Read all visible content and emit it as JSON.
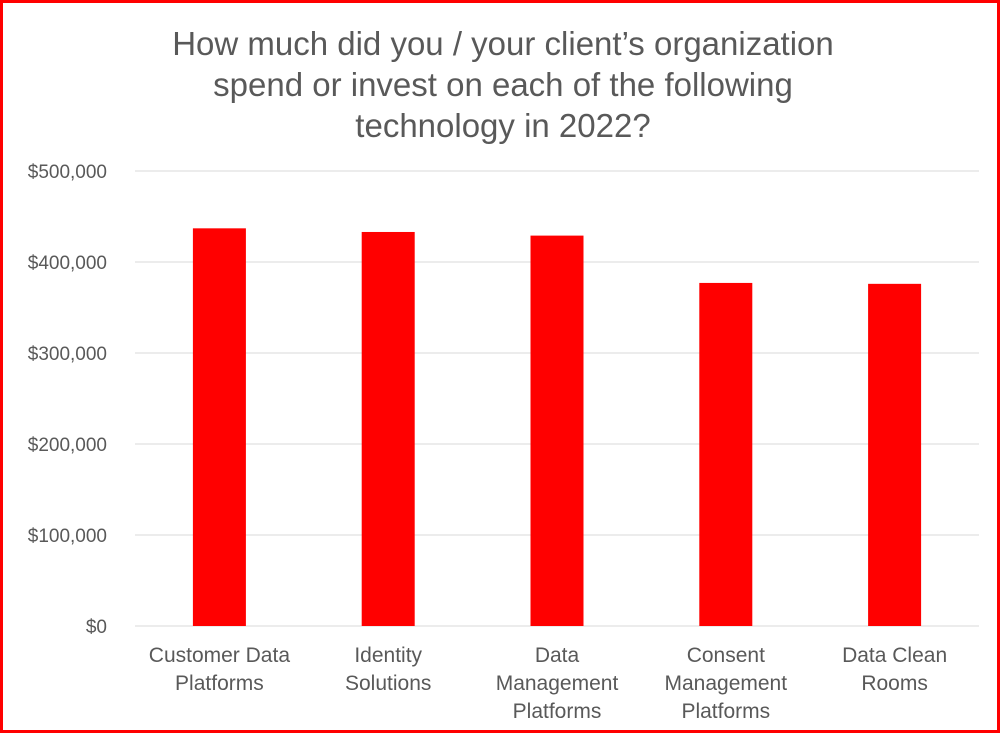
{
  "chart_data": {
    "type": "bar",
    "title_lines": [
      "How much did you / your client’s organization",
      "spend or invest on each of the following",
      "technology in 2022?"
    ],
    "categories": [
      [
        "Customer Data",
        "Platforms"
      ],
      [
        "Identity",
        "Solutions"
      ],
      [
        "Data",
        "Management",
        "Platforms"
      ],
      [
        "Consent",
        "Management",
        "Platforms"
      ],
      [
        "Data Clean",
        "Rooms"
      ]
    ],
    "values": [
      437000,
      433000,
      429000,
      377000,
      376000
    ],
    "ylim": [
      0,
      500000
    ],
    "yticks": [
      "$0",
      "$100,000",
      "$200,000",
      "$300,000",
      "$400,000",
      "$500,000"
    ],
    "grid": true,
    "bar_color": "#ff0000",
    "frame_color": "#ff0000"
  }
}
